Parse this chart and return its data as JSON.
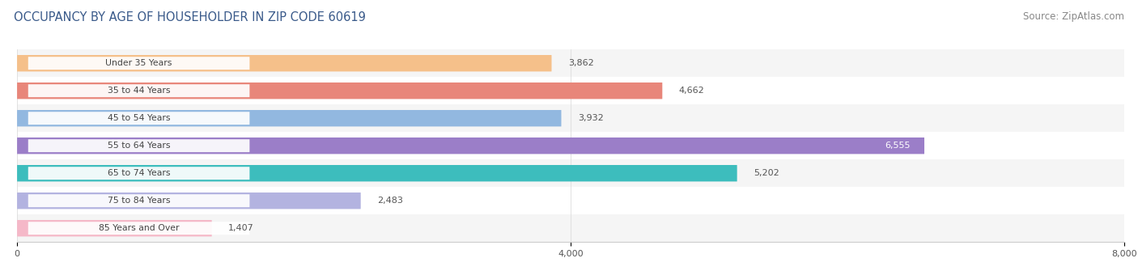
{
  "title": "OCCUPANCY BY AGE OF HOUSEHOLDER IN ZIP CODE 60619",
  "source": "Source: ZipAtlas.com",
  "categories": [
    "Under 35 Years",
    "35 to 44 Years",
    "45 to 54 Years",
    "55 to 64 Years",
    "65 to 74 Years",
    "75 to 84 Years",
    "85 Years and Over"
  ],
  "values": [
    3862,
    4662,
    3932,
    6555,
    5202,
    2483,
    1407
  ],
  "bar_colors": [
    "#f5c08a",
    "#e8867a",
    "#92b8e0",
    "#9b7ec8",
    "#3dbdbd",
    "#b3b3e0",
    "#f5b8c8"
  ],
  "xlim": [
    0,
    8000
  ],
  "xticks": [
    0,
    4000,
    8000
  ],
  "title_fontsize": 10.5,
  "source_fontsize": 8.5,
  "bar_height": 0.6,
  "background_color": "#ffffff",
  "row_bg_light": "#f5f5f5",
  "row_bg_dark": "#ebebeb",
  "inside_value_threshold": 5500,
  "label_bg_color": "#ffffff",
  "label_text_color": "#444444",
  "outside_value_color": "#555555",
  "inside_value_color": "#ffffff",
  "grid_color": "#dddddd",
  "spine_color": "#cccccc"
}
